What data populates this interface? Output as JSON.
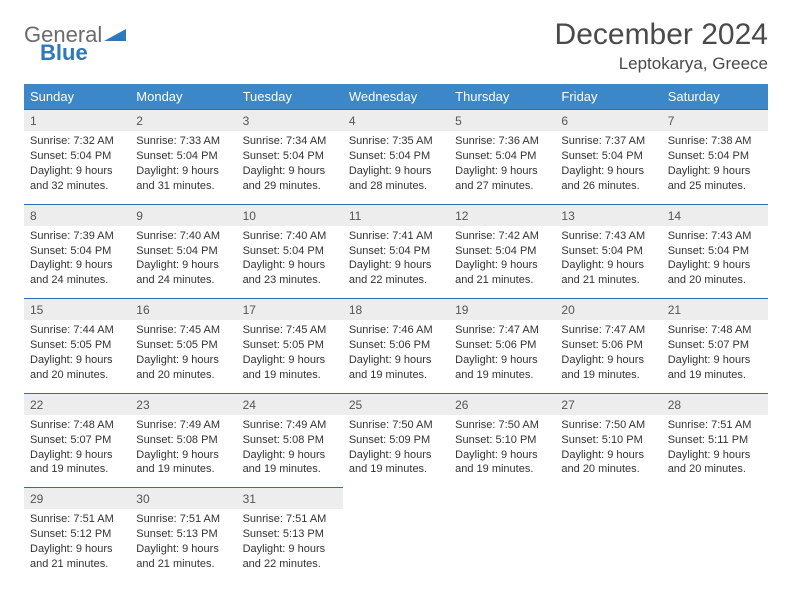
{
  "brand": {
    "part1": "General",
    "part2": "Blue"
  },
  "title": "December 2024",
  "location": "Leptokarya, Greece",
  "colors": {
    "header_bg": "#3b87c8",
    "header_border": "#2f6fa8",
    "daynum_bg": "#ededed",
    "text": "#333333",
    "title_text": "#4a4a4a"
  },
  "layout": {
    "columns": 7,
    "rows": 5,
    "first_day_col": 0
  },
  "weekdays": [
    "Sunday",
    "Monday",
    "Tuesday",
    "Wednesday",
    "Thursday",
    "Friday",
    "Saturday"
  ],
  "days": [
    {
      "n": 1,
      "sunrise": "7:32 AM",
      "sunset": "5:04 PM",
      "dl_h": 9,
      "dl_m": 32
    },
    {
      "n": 2,
      "sunrise": "7:33 AM",
      "sunset": "5:04 PM",
      "dl_h": 9,
      "dl_m": 31
    },
    {
      "n": 3,
      "sunrise": "7:34 AM",
      "sunset": "5:04 PM",
      "dl_h": 9,
      "dl_m": 29
    },
    {
      "n": 4,
      "sunrise": "7:35 AM",
      "sunset": "5:04 PM",
      "dl_h": 9,
      "dl_m": 28
    },
    {
      "n": 5,
      "sunrise": "7:36 AM",
      "sunset": "5:04 PM",
      "dl_h": 9,
      "dl_m": 27
    },
    {
      "n": 6,
      "sunrise": "7:37 AM",
      "sunset": "5:04 PM",
      "dl_h": 9,
      "dl_m": 26
    },
    {
      "n": 7,
      "sunrise": "7:38 AM",
      "sunset": "5:04 PM",
      "dl_h": 9,
      "dl_m": 25
    },
    {
      "n": 8,
      "sunrise": "7:39 AM",
      "sunset": "5:04 PM",
      "dl_h": 9,
      "dl_m": 24
    },
    {
      "n": 9,
      "sunrise": "7:40 AM",
      "sunset": "5:04 PM",
      "dl_h": 9,
      "dl_m": 24
    },
    {
      "n": 10,
      "sunrise": "7:40 AM",
      "sunset": "5:04 PM",
      "dl_h": 9,
      "dl_m": 23
    },
    {
      "n": 11,
      "sunrise": "7:41 AM",
      "sunset": "5:04 PM",
      "dl_h": 9,
      "dl_m": 22
    },
    {
      "n": 12,
      "sunrise": "7:42 AM",
      "sunset": "5:04 PM",
      "dl_h": 9,
      "dl_m": 21
    },
    {
      "n": 13,
      "sunrise": "7:43 AM",
      "sunset": "5:04 PM",
      "dl_h": 9,
      "dl_m": 21
    },
    {
      "n": 14,
      "sunrise": "7:43 AM",
      "sunset": "5:04 PM",
      "dl_h": 9,
      "dl_m": 20
    },
    {
      "n": 15,
      "sunrise": "7:44 AM",
      "sunset": "5:05 PM",
      "dl_h": 9,
      "dl_m": 20
    },
    {
      "n": 16,
      "sunrise": "7:45 AM",
      "sunset": "5:05 PM",
      "dl_h": 9,
      "dl_m": 20
    },
    {
      "n": 17,
      "sunrise": "7:45 AM",
      "sunset": "5:05 PM",
      "dl_h": 9,
      "dl_m": 19
    },
    {
      "n": 18,
      "sunrise": "7:46 AM",
      "sunset": "5:06 PM",
      "dl_h": 9,
      "dl_m": 19
    },
    {
      "n": 19,
      "sunrise": "7:47 AM",
      "sunset": "5:06 PM",
      "dl_h": 9,
      "dl_m": 19
    },
    {
      "n": 20,
      "sunrise": "7:47 AM",
      "sunset": "5:06 PM",
      "dl_h": 9,
      "dl_m": 19
    },
    {
      "n": 21,
      "sunrise": "7:48 AM",
      "sunset": "5:07 PM",
      "dl_h": 9,
      "dl_m": 19
    },
    {
      "n": 22,
      "sunrise": "7:48 AM",
      "sunset": "5:07 PM",
      "dl_h": 9,
      "dl_m": 19
    },
    {
      "n": 23,
      "sunrise": "7:49 AM",
      "sunset": "5:08 PM",
      "dl_h": 9,
      "dl_m": 19
    },
    {
      "n": 24,
      "sunrise": "7:49 AM",
      "sunset": "5:08 PM",
      "dl_h": 9,
      "dl_m": 19
    },
    {
      "n": 25,
      "sunrise": "7:50 AM",
      "sunset": "5:09 PM",
      "dl_h": 9,
      "dl_m": 19
    },
    {
      "n": 26,
      "sunrise": "7:50 AM",
      "sunset": "5:10 PM",
      "dl_h": 9,
      "dl_m": 19
    },
    {
      "n": 27,
      "sunrise": "7:50 AM",
      "sunset": "5:10 PM",
      "dl_h": 9,
      "dl_m": 20
    },
    {
      "n": 28,
      "sunrise": "7:51 AM",
      "sunset": "5:11 PM",
      "dl_h": 9,
      "dl_m": 20
    },
    {
      "n": 29,
      "sunrise": "7:51 AM",
      "sunset": "5:12 PM",
      "dl_h": 9,
      "dl_m": 21
    },
    {
      "n": 30,
      "sunrise": "7:51 AM",
      "sunset": "5:13 PM",
      "dl_h": 9,
      "dl_m": 21
    },
    {
      "n": 31,
      "sunrise": "7:51 AM",
      "sunset": "5:13 PM",
      "dl_h": 9,
      "dl_m": 22
    }
  ],
  "labels": {
    "sunrise": "Sunrise:",
    "sunset": "Sunset:",
    "daylight_prefix": "Daylight:",
    "hours_word": "hours",
    "and_word": "and",
    "minutes_word": "minutes."
  }
}
